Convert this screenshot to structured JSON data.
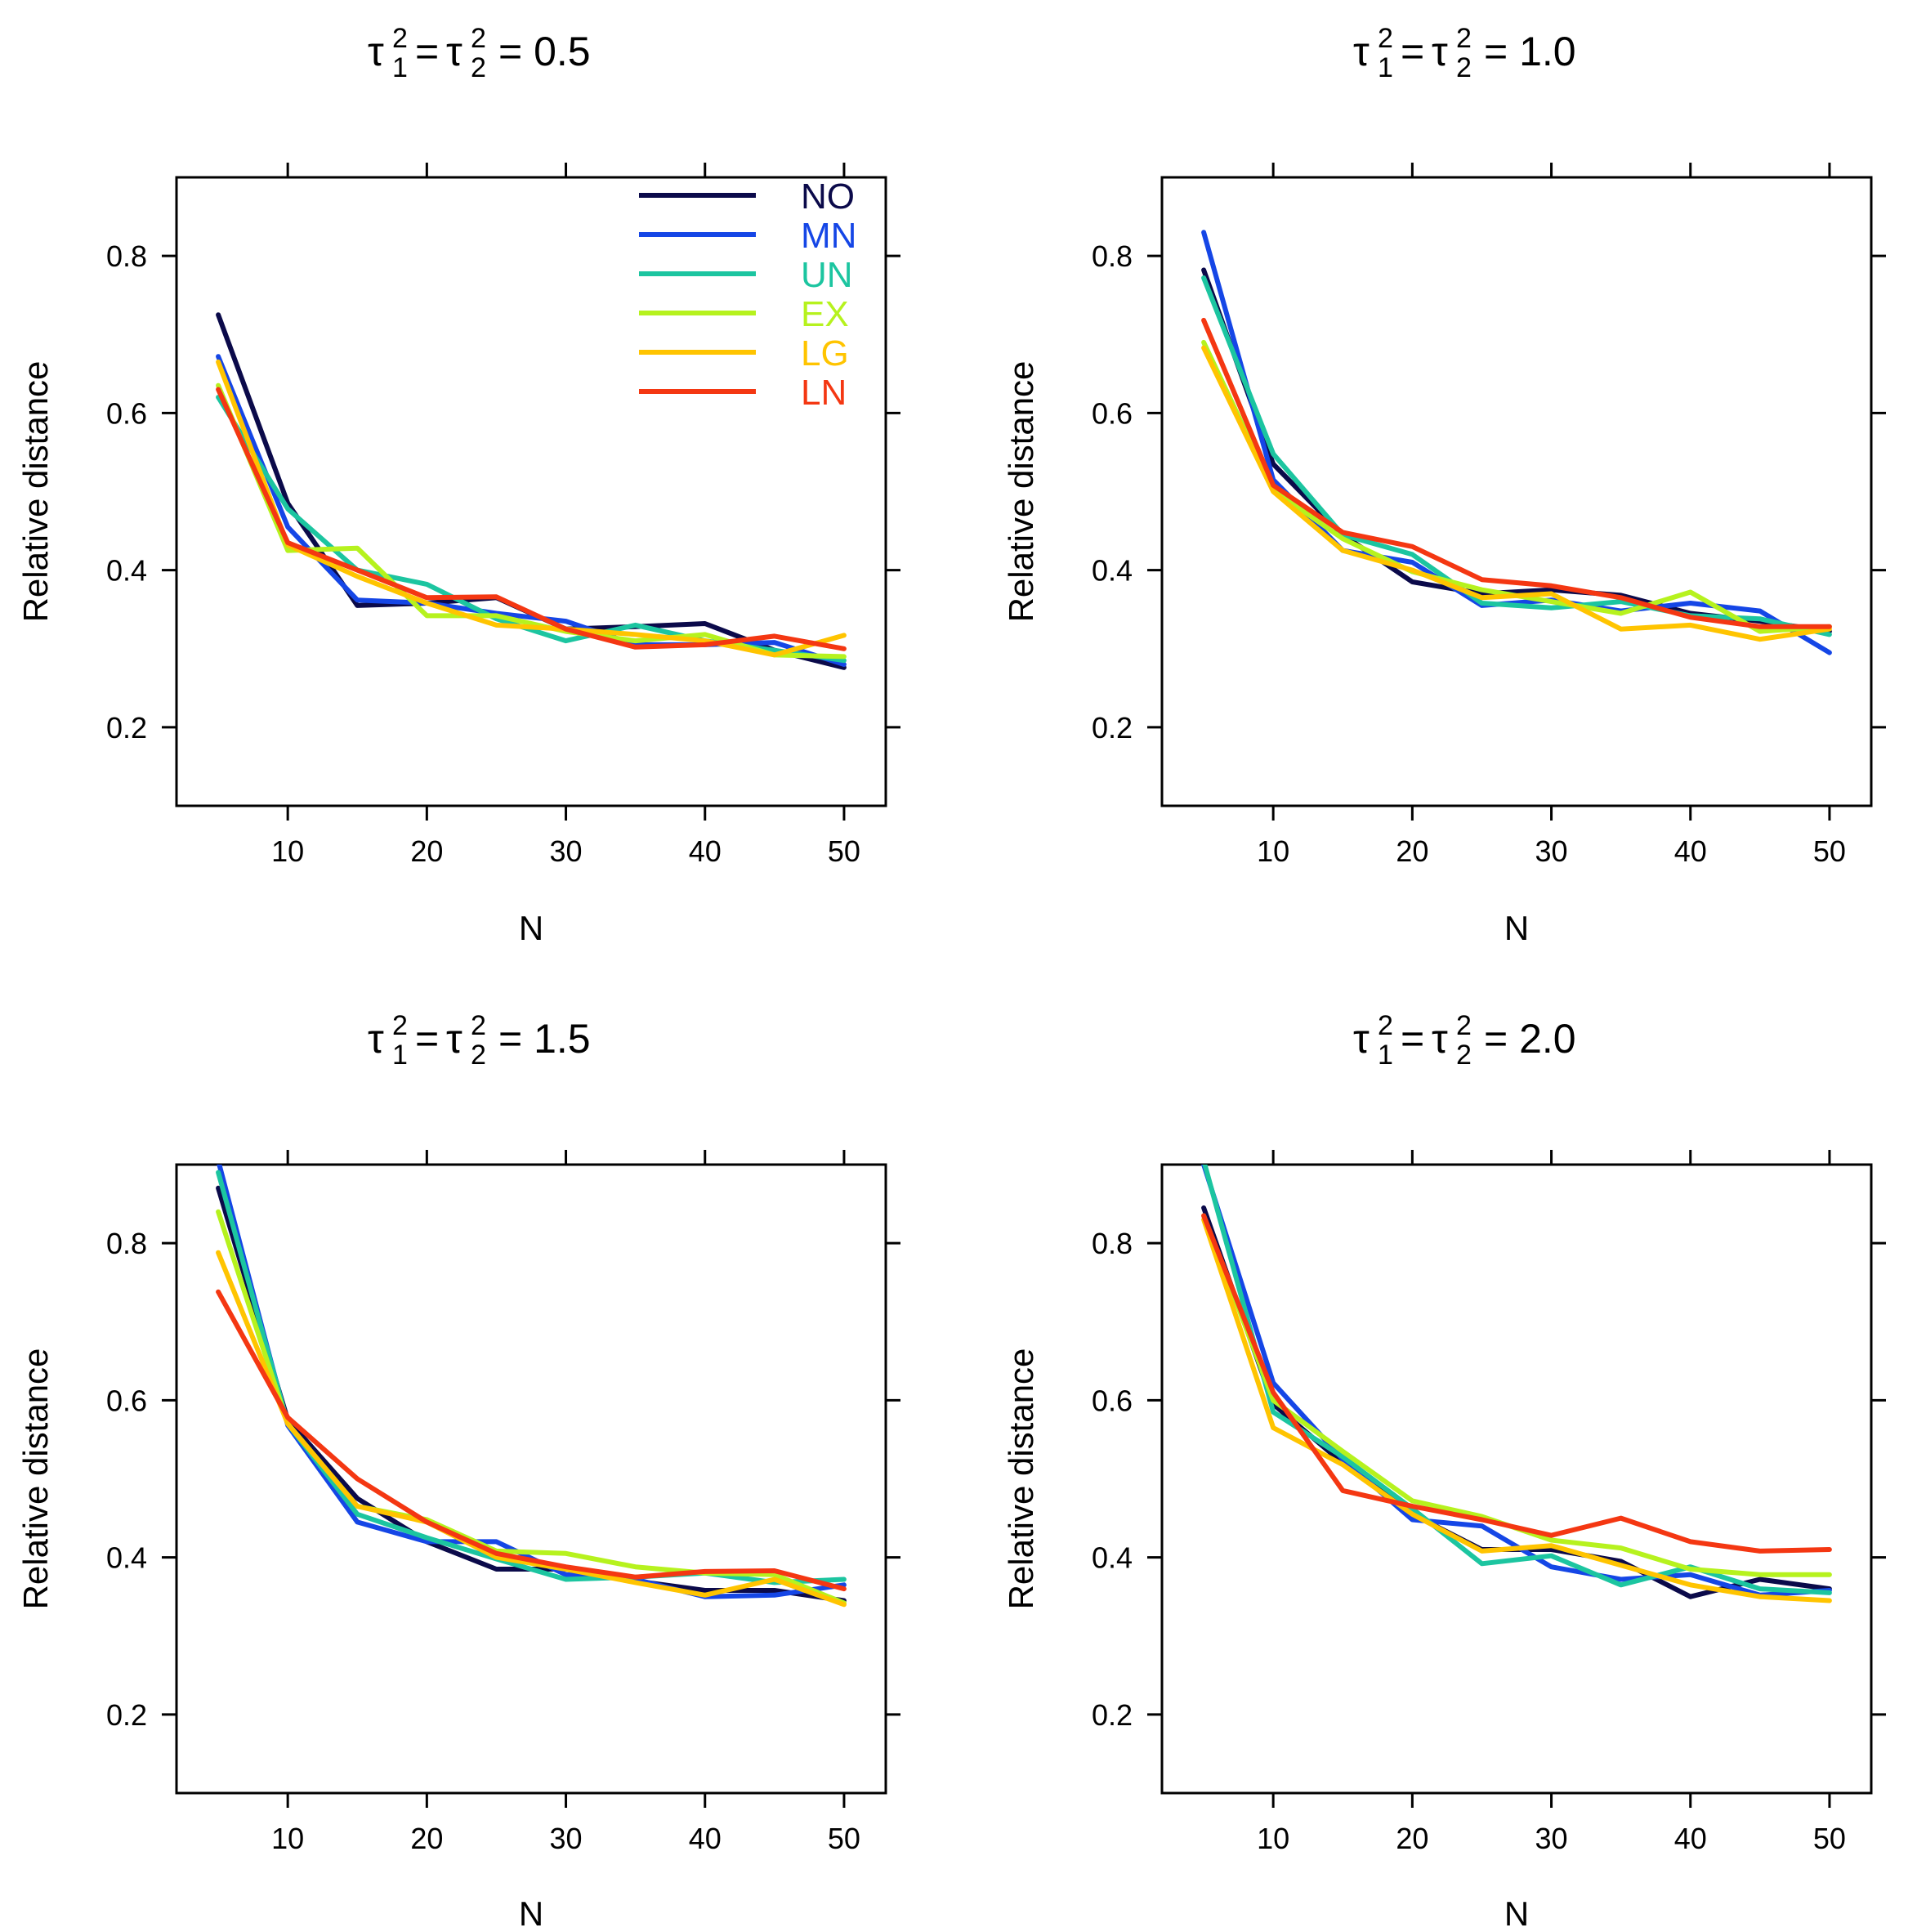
{
  "series_colors": {
    "NO": "#0b0a4a",
    "MN": "#1546e6",
    "UN": "#1cc5a0",
    "EX": "#b6f21e",
    "LG": "#ffc400",
    "LN": "#f43712"
  },
  "chart_data": [
    {
      "type": "line",
      "title": "τ1² = τ2² = 0.5",
      "title_parts": {
        "tau": "τ",
        "sup1": "2",
        "sub1": "1",
        "eq1": "=",
        "sup2": "2",
        "sub2": "2",
        "value": "= 0.5"
      },
      "xlabel": "N",
      "ylabel": "Relative distance",
      "xlim": [
        2,
        53
      ],
      "ylim": [
        0.1,
        0.9
      ],
      "x_ticks": [
        10,
        20,
        30,
        40,
        50
      ],
      "y_ticks": [
        0.2,
        0.4,
        0.6,
        0.8
      ],
      "x_tick_labels": [
        "10",
        "20",
        "30",
        "40",
        "50"
      ],
      "y_tick_labels": [
        "0.2",
        "0.4",
        "0.6",
        "0.8"
      ],
      "legend": {
        "position": "top-right",
        "entries": [
          "NO",
          "MN",
          "UN",
          "EX",
          "LG",
          "LN"
        ]
      },
      "x": [
        5,
        10,
        15,
        20,
        25,
        30,
        35,
        40,
        45,
        50
      ],
      "series": [
        {
          "name": "NO",
          "values": [
            0.725,
            0.485,
            0.355,
            0.358,
            0.365,
            0.325,
            0.328,
            0.332,
            0.298,
            0.276
          ]
        },
        {
          "name": "MN",
          "values": [
            0.672,
            0.455,
            0.362,
            0.358,
            0.345,
            0.335,
            0.305,
            0.305,
            0.308,
            0.28
          ]
        },
        {
          "name": "UN",
          "values": [
            0.62,
            0.478,
            0.4,
            0.382,
            0.338,
            0.31,
            0.33,
            0.31,
            0.298,
            0.285
          ]
        },
        {
          "name": "EX",
          "values": [
            0.635,
            0.425,
            0.428,
            0.342,
            0.342,
            0.322,
            0.31,
            0.318,
            0.292,
            0.29
          ]
        },
        {
          "name": "LG",
          "values": [
            0.665,
            0.432,
            0.392,
            0.358,
            0.33,
            0.325,
            0.318,
            0.31,
            0.292,
            0.317
          ]
        },
        {
          "name": "LN",
          "values": [
            0.63,
            0.435,
            0.4,
            0.365,
            0.366,
            0.325,
            0.302,
            0.305,
            0.316,
            0.3
          ]
        }
      ]
    },
    {
      "type": "line",
      "title": "τ1² = τ2² = 1.0",
      "title_parts": {
        "tau": "τ",
        "sup1": "2",
        "sub1": "1",
        "eq1": "=",
        "sup2": "2",
        "sub2": "2",
        "value": "= 1.0"
      },
      "xlabel": "N",
      "ylabel": "Relative distance",
      "xlim": [
        2,
        53
      ],
      "ylim": [
        0.1,
        0.9
      ],
      "x_ticks": [
        10,
        20,
        30,
        40,
        50
      ],
      "y_ticks": [
        0.2,
        0.4,
        0.6,
        0.8
      ],
      "x_tick_labels": [
        "10",
        "20",
        "30",
        "40",
        "50"
      ],
      "y_tick_labels": [
        "0.2",
        "0.4",
        "0.6",
        "0.8"
      ],
      "x": [
        5,
        10,
        15,
        20,
        25,
        30,
        35,
        40,
        45,
        50
      ],
      "series": [
        {
          "name": "NO",
          "values": [
            0.782,
            0.535,
            0.445,
            0.385,
            0.37,
            0.375,
            0.368,
            0.345,
            0.335,
            0.322
          ]
        },
        {
          "name": "MN",
          "values": [
            0.83,
            0.515,
            0.425,
            0.41,
            0.355,
            0.362,
            0.348,
            0.358,
            0.348,
            0.295
          ]
        },
        {
          "name": "UN",
          "values": [
            0.772,
            0.548,
            0.445,
            0.42,
            0.358,
            0.352,
            0.36,
            0.342,
            0.338,
            0.318
          ]
        },
        {
          "name": "EX",
          "values": [
            0.69,
            0.502,
            0.44,
            0.398,
            0.375,
            0.36,
            0.345,
            0.372,
            0.322,
            0.328
          ]
        },
        {
          "name": "LG",
          "values": [
            0.683,
            0.5,
            0.425,
            0.4,
            0.365,
            0.37,
            0.325,
            0.33,
            0.312,
            0.325
          ]
        },
        {
          "name": "LN",
          "values": [
            0.718,
            0.508,
            0.448,
            0.43,
            0.388,
            0.38,
            0.365,
            0.34,
            0.328,
            0.328
          ]
        }
      ]
    },
    {
      "type": "line",
      "title": "τ1² = τ2² = 1.5",
      "title_parts": {
        "tau": "τ",
        "sup1": "2",
        "sub1": "1",
        "eq1": "=",
        "sup2": "2",
        "sub2": "2",
        "value": "= 1.5"
      },
      "xlabel": "N",
      "ylabel": "Relative distance",
      "xlim": [
        2,
        53
      ],
      "ylim": [
        0.1,
        0.9
      ],
      "x_ticks": [
        10,
        20,
        30,
        40,
        50
      ],
      "y_ticks": [
        0.2,
        0.4,
        0.6,
        0.8
      ],
      "x_tick_labels": [
        "10",
        "20",
        "30",
        "40",
        "50"
      ],
      "y_tick_labels": [
        "0.2",
        "0.4",
        "0.6",
        "0.8"
      ],
      "x": [
        5,
        10,
        15,
        20,
        25,
        30,
        35,
        40,
        45,
        50
      ],
      "series": [
        {
          "name": "NO",
          "values": [
            0.87,
            0.575,
            0.475,
            0.42,
            0.385,
            0.385,
            0.37,
            0.358,
            0.358,
            0.345
          ]
        },
        {
          "name": "MN",
          "values": [
            0.905,
            0.568,
            0.445,
            0.42,
            0.42,
            0.378,
            0.372,
            0.35,
            0.352,
            0.365
          ]
        },
        {
          "name": "UN",
          "values": [
            0.89,
            0.57,
            0.455,
            0.425,
            0.398,
            0.372,
            0.375,
            0.38,
            0.368,
            0.372
          ]
        },
        {
          "name": "EX",
          "values": [
            0.84,
            0.57,
            0.465,
            0.448,
            0.408,
            0.405,
            0.388,
            0.38,
            0.378,
            0.342
          ]
        },
        {
          "name": "LG",
          "values": [
            0.788,
            0.57,
            0.465,
            0.445,
            0.4,
            0.385,
            0.368,
            0.352,
            0.372,
            0.34
          ]
        },
        {
          "name": "LN",
          "values": [
            0.738,
            0.578,
            0.5,
            0.445,
            0.405,
            0.388,
            0.375,
            0.382,
            0.383,
            0.36
          ]
        }
      ]
    },
    {
      "type": "line",
      "title": "τ1² = τ2² = 2.0",
      "title_parts": {
        "tau": "τ",
        "sup1": "2",
        "sub1": "1",
        "eq1": "=",
        "sup2": "2",
        "sub2": "2",
        "value": "= 2.0"
      },
      "xlabel": "N",
      "ylabel": "Relative distance",
      "xlim": [
        2,
        53
      ],
      "ylim": [
        0.1,
        0.9
      ],
      "x_ticks": [
        10,
        20,
        30,
        40,
        50
      ],
      "y_ticks": [
        0.2,
        0.4,
        0.6,
        0.8
      ],
      "x_tick_labels": [
        "10",
        "20",
        "30",
        "40",
        "50"
      ],
      "y_tick_labels": [
        "0.2",
        "0.4",
        "0.6",
        "0.8"
      ],
      "x": [
        5,
        10,
        15,
        20,
        25,
        30,
        35,
        40,
        45,
        50
      ],
      "series": [
        {
          "name": "NO",
          "values": [
            0.845,
            0.595,
            0.52,
            0.455,
            0.41,
            0.41,
            0.395,
            0.35,
            0.372,
            0.36
          ]
        },
        {
          "name": "MN",
          "values": [
            0.9,
            0.622,
            0.525,
            0.448,
            0.44,
            0.388,
            0.372,
            0.378,
            0.352,
            0.358
          ]
        },
        {
          "name": "UN",
          "values": [
            0.905,
            0.585,
            0.528,
            0.462,
            0.392,
            0.402,
            0.365,
            0.388,
            0.36,
            0.355
          ]
        },
        {
          "name": "EX",
          "values": [
            0.835,
            0.6,
            0.535,
            0.472,
            0.452,
            0.422,
            0.412,
            0.385,
            0.378,
            0.378
          ]
        },
        {
          "name": "LG",
          "values": [
            0.83,
            0.565,
            0.518,
            0.455,
            0.408,
            0.415,
            0.39,
            0.365,
            0.35,
            0.345
          ]
        },
        {
          "name": "LN",
          "values": [
            0.835,
            0.61,
            0.485,
            0.465,
            0.448,
            0.428,
            0.45,
            0.42,
            0.408,
            0.41
          ]
        }
      ]
    }
  ]
}
